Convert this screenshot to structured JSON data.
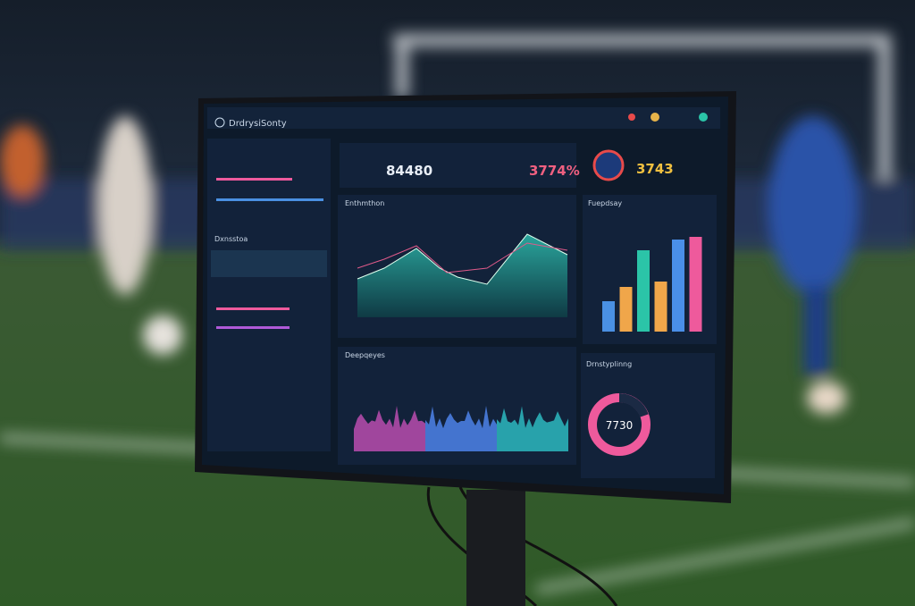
{
  "screen": {
    "brand": "DrdrysiSonty",
    "stats": [
      "84480",
      "3774%",
      "3743"
    ],
    "panels": {
      "line": "Enthmthon",
      "bars": "Fuepdsay",
      "area": "Deepqeyes",
      "donut": "Drnstyplinng",
      "left": "Dxnsstoa"
    },
    "donut_value": "7730",
    "bars": {
      "values": [
        34,
        50,
        91,
        56,
        103,
        106
      ],
      "colors": [
        "#4a90e2",
        "#f0a64a",
        "#2bc4a8",
        "#f0a64a",
        "#4a8fe8",
        "#ee5a9c"
      ]
    }
  }
}
